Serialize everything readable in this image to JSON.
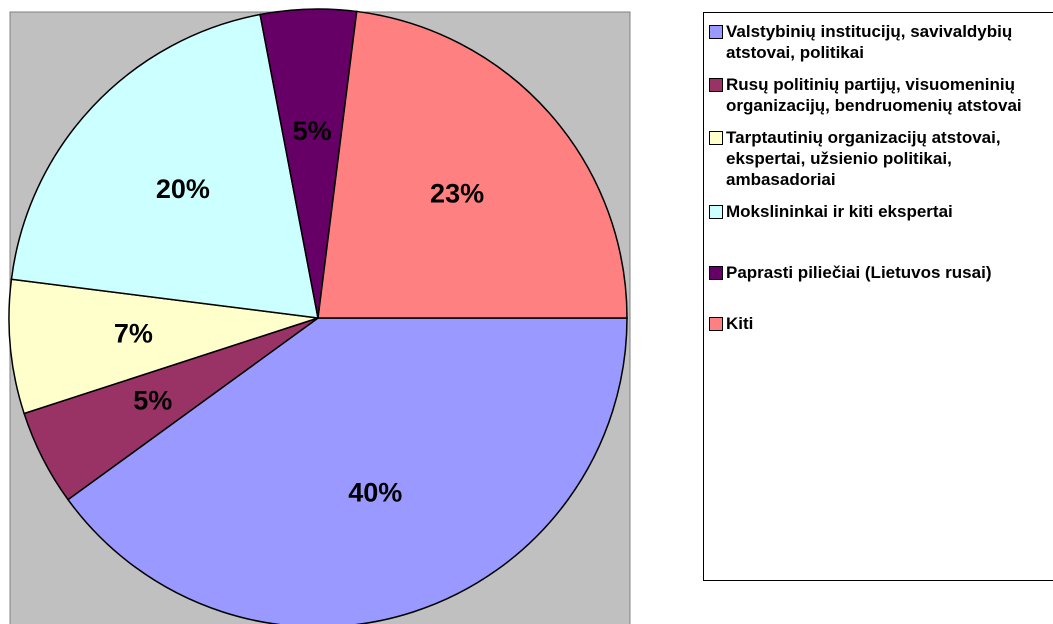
{
  "chart_data": {
    "type": "pie",
    "categories": [
      "Valstybinių institucijų, savivaldybių atstovai, politikai",
      "Rusų politinių partijų, visuomeninių organizacijų, bendruomenių atstovai",
      "Tarptautinių organizacijų atstovai, ekspertai, užsienio politikai, ambasadoriai",
      "Mokslininkai ir kiti ekspertai",
      "Paprasti piliečiai (Lietuvos rusai)",
      "Kiti"
    ],
    "values": [
      40,
      5,
      7,
      20,
      5,
      23
    ],
    "value_labels": [
      "40%",
      "5%",
      "7%",
      "20%",
      "5%",
      "23%"
    ],
    "colors": [
      "#9999ff",
      "#993366",
      "#ffffcc",
      "#ccffff",
      "#660066",
      "#ff8080"
    ]
  }
}
